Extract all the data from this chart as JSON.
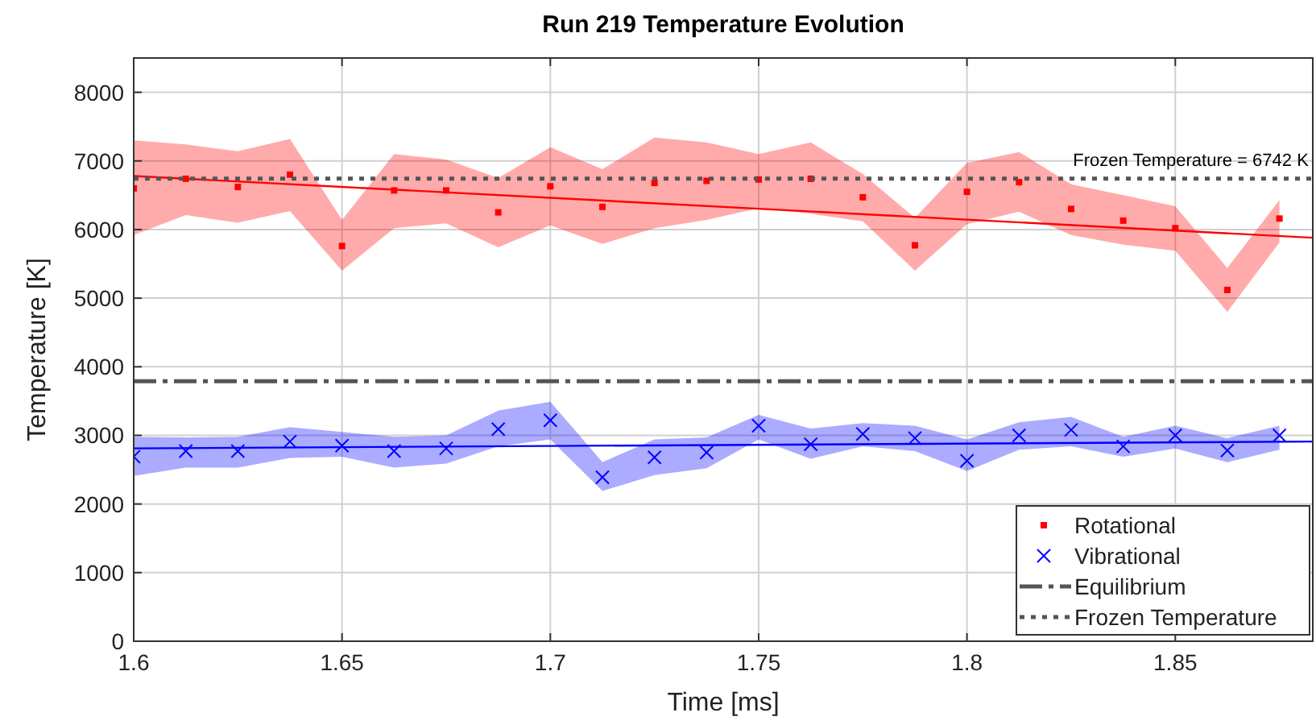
{
  "chart_data": {
    "type": "scatter",
    "title": "Run 219 Temperature Evolution",
    "xlabel": "Time [ms]",
    "ylabel": "Temperature [K]",
    "xlim": [
      1.6,
      1.883
    ],
    "xticks": [
      1.6,
      1.65,
      1.7,
      1.75,
      1.8,
      1.85
    ],
    "ylim": [
      0,
      8500
    ],
    "yticks": [
      0,
      1000,
      2000,
      3000,
      4000,
      5000,
      6000,
      7000,
      8000
    ],
    "grid": true,
    "legend": "bottom right",
    "series": [
      {
        "name": "Rotational",
        "marker": "square",
        "color": "#ff0000",
        "x": [
          1.6,
          1.6125,
          1.625,
          1.6375,
          1.65,
          1.6625,
          1.675,
          1.6875,
          1.7,
          1.7125,
          1.725,
          1.7375,
          1.75,
          1.7625,
          1.775,
          1.7875,
          1.8,
          1.8125,
          1.825,
          1.8375,
          1.85,
          1.8625,
          1.875
        ],
        "values": [
          6600,
          6740,
          6620,
          6800,
          5760,
          6570,
          6570,
          6250,
          6630,
          6330,
          6680,
          6710,
          6730,
          6740,
          6470,
          5770,
          6550,
          6690,
          6300,
          6130,
          6020,
          5120,
          6160
        ],
        "upper": [
          7300,
          7240,
          7140,
          7320,
          6140,
          7100,
          7020,
          6750,
          7200,
          6880,
          7340,
          7270,
          7100,
          7270,
          6810,
          6170,
          6970,
          7130,
          6660,
          6500,
          6340,
          5440,
          6430
        ],
        "lower": [
          5920,
          6210,
          6100,
          6270,
          5400,
          6020,
          6090,
          5740,
          6060,
          5790,
          6020,
          6140,
          6310,
          6230,
          6120,
          5400,
          6080,
          6260,
          5920,
          5780,
          5690,
          4800,
          5810
        ]
      },
      {
        "name": "Vibrational",
        "marker": "cross",
        "color": "#0000ff",
        "x": [
          1.6,
          1.6125,
          1.625,
          1.6375,
          1.65,
          1.6625,
          1.675,
          1.6875,
          1.7,
          1.7125,
          1.725,
          1.7375,
          1.75,
          1.7625,
          1.775,
          1.7875,
          1.8,
          1.8125,
          1.825,
          1.8375,
          1.85,
          1.8625,
          1.875
        ],
        "values": [
          2690,
          2770,
          2770,
          2910,
          2850,
          2770,
          2810,
          3090,
          3220,
          2390,
          2680,
          2750,
          3140,
          2870,
          3020,
          2960,
          2630,
          3000,
          3080,
          2840,
          3000,
          2780,
          3000
        ],
        "upper": [
          2980,
          2970,
          2980,
          3120,
          3050,
          2980,
          3000,
          3360,
          3490,
          2610,
          2940,
          2970,
          3300,
          3100,
          3180,
          3140,
          2940,
          3190,
          3270,
          2980,
          3140,
          2960,
          3140
        ],
        "lower": [
          2410,
          2530,
          2530,
          2670,
          2690,
          2530,
          2590,
          2840,
          2940,
          2190,
          2420,
          2520,
          2940,
          2660,
          2840,
          2770,
          2480,
          2790,
          2840,
          2690,
          2810,
          2610,
          2790
        ]
      },
      {
        "type": "line",
        "color": "#ff0000",
        "x": [
          1.6,
          1.883
        ],
        "values": [
          6780,
          5880
        ]
      },
      {
        "type": "line",
        "color": "#0000ff",
        "x": [
          1.6,
          1.883
        ],
        "values": [
          2810,
          2910
        ]
      }
    ],
    "ref_lines": [
      {
        "axis": "y",
        "value": 3790,
        "label": "Equilibrium",
        "color": "#555555",
        "line_style": "dashed"
      },
      {
        "axis": "y",
        "value": 6742,
        "label": "Frozen Temperature",
        "color": "#555555",
        "line_style": "dotted"
      }
    ],
    "annotations": [
      {
        "text": "Frozen Temperature = 6742 K",
        "x": 1.882,
        "y": 6742
      }
    ]
  }
}
